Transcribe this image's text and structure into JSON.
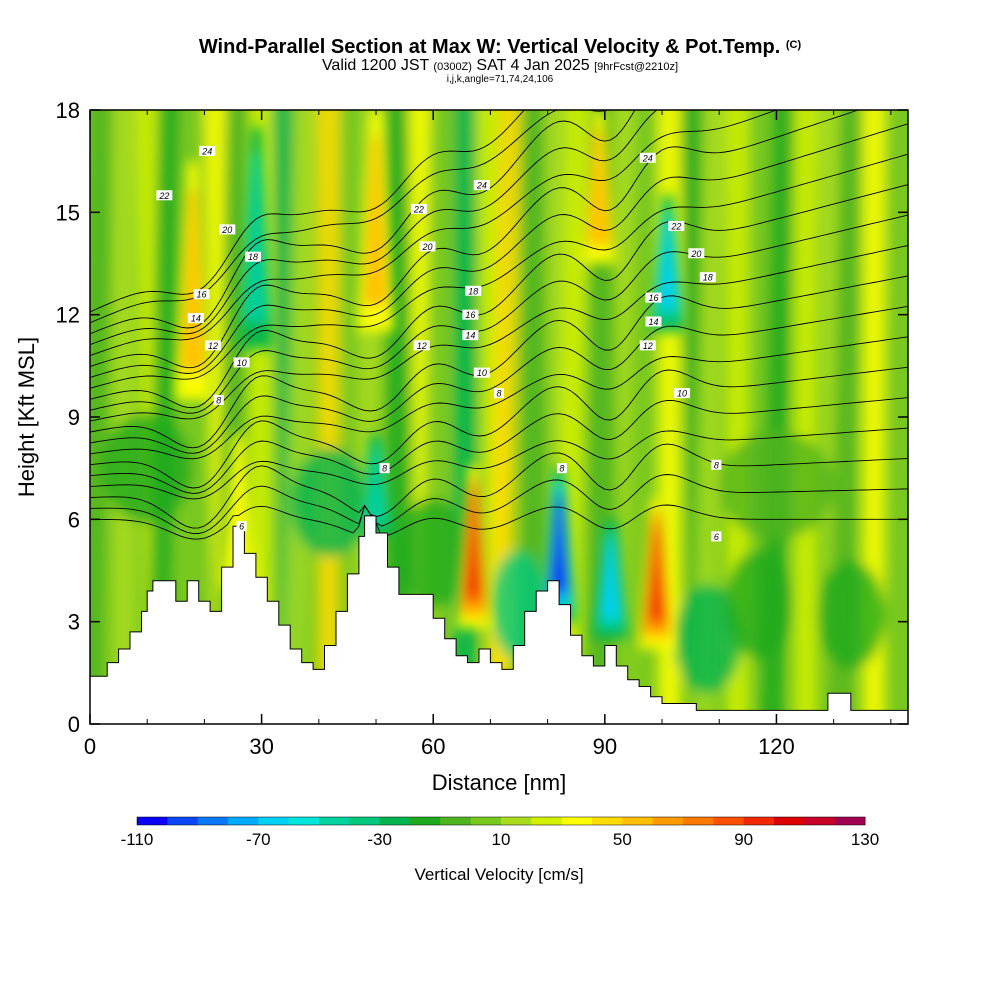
{
  "header": {
    "title": "Wind-Parallel Section at Max W: Vertical Velocity & Pot.Temp.",
    "title_mark": "(C)",
    "valid_prefix": "Valid 1200 JST",
    "valid_utc": "(0300Z)",
    "valid_date": "SAT 4 Jan 2025",
    "forecast": "[9hrFcst@2210z]",
    "indices": "i,j,k,angle=71,74,24,106"
  },
  "chart_data": {
    "type": "heatmap",
    "xlabel": "Distance [nm]",
    "ylabel": "Height [Kft MSL]",
    "xlim": [
      0,
      143
    ],
    "ylim": [
      0,
      18
    ],
    "x_ticks": [
      "0",
      "30",
      "60",
      "90",
      "120"
    ],
    "y_ticks": [
      "0",
      "3",
      "6",
      "9",
      "12",
      "15",
      "18"
    ],
    "colorbar": {
      "label": "Vertical Velocity [cm/s]",
      "range": [
        -110,
        130
      ],
      "step": 10,
      "tick_labels": [
        "-110",
        "-70",
        "-30",
        "10",
        "50",
        "90",
        "130"
      ],
      "colors": [
        "#0a00f5",
        "#0a46f5",
        "#0a78f5",
        "#00aaff",
        "#00d2f5",
        "#00e6dc",
        "#00d2a0",
        "#00c87d",
        "#00b450",
        "#1eaa1e",
        "#50b41e",
        "#78c81e",
        "#aadc1e",
        "#d2f000",
        "#ffff00",
        "#ffdc00",
        "#ffbe00",
        "#ff9b00",
        "#ff7800",
        "#ff5000",
        "#f02800",
        "#dc0000",
        "#c80028",
        "#a00050",
        "#780078"
      ]
    },
    "terrain_heights_kft": [
      [
        0,
        1.4
      ],
      [
        3,
        1.8
      ],
      [
        5,
        2.2
      ],
      [
        7,
        2.7
      ],
      [
        9,
        3.3
      ],
      [
        10,
        3.9
      ],
      [
        11,
        4.2
      ],
      [
        13,
        4.2
      ],
      [
        15,
        3.6
      ],
      [
        17,
        4.2
      ],
      [
        19,
        3.6
      ],
      [
        21,
        3.3
      ],
      [
        23,
        4.6
      ],
      [
        25,
        5.8
      ],
      [
        27,
        5.0
      ],
      [
        29,
        4.3
      ],
      [
        31,
        3.6
      ],
      [
        33,
        2.9
      ],
      [
        35,
        2.2
      ],
      [
        37,
        1.8
      ],
      [
        39,
        1.6
      ],
      [
        41,
        2.3
      ],
      [
        43,
        3.3
      ],
      [
        45,
        4.4
      ],
      [
        47,
        5.5
      ],
      [
        48,
        6.1
      ],
      [
        50,
        5.6
      ],
      [
        52,
        4.6
      ],
      [
        54,
        3.8
      ],
      [
        58,
        3.8
      ],
      [
        60,
        3.1
      ],
      [
        62,
        2.5
      ],
      [
        64,
        2.0
      ],
      [
        66,
        1.8
      ],
      [
        68,
        2.2
      ],
      [
        70,
        1.8
      ],
      [
        72,
        1.6
      ],
      [
        74,
        2.3
      ],
      [
        76,
        3.3
      ],
      [
        78,
        3.9
      ],
      [
        80,
        4.2
      ],
      [
        82,
        3.5
      ],
      [
        84,
        2.6
      ],
      [
        86,
        2.0
      ],
      [
        88,
        1.7
      ],
      [
        90,
        2.3
      ],
      [
        92,
        1.7
      ],
      [
        94,
        1.3
      ],
      [
        96,
        1.1
      ],
      [
        98,
        0.8
      ],
      [
        100,
        0.6
      ],
      [
        102,
        0.6
      ],
      [
        106,
        0.4
      ],
      [
        110,
        0.4
      ],
      [
        128,
        0.4
      ],
      [
        129,
        0.9
      ],
      [
        132,
        0.9
      ],
      [
        133,
        0.4
      ],
      [
        143,
        0.4
      ]
    ],
    "updraft_cores": [
      {
        "x": 18,
        "y_bottom": 9.5,
        "y_top": 16.5,
        "w": 60
      },
      {
        "x": 26,
        "y_bottom": 4.0,
        "y_top": 8.5,
        "w": 40
      },
      {
        "x": 50,
        "y_bottom": 11.5,
        "y_top": 18.0,
        "w": 60
      },
      {
        "x": 67,
        "y_bottom": 2.8,
        "y_top": 7.6,
        "w": 90
      },
      {
        "x": 89,
        "y_bottom": 13.5,
        "y_top": 18.0,
        "w": 60
      },
      {
        "x": 99,
        "y_bottom": 2.2,
        "y_top": 6.6,
        "w": 90
      }
    ],
    "downdraft_cores": [
      {
        "x": 29,
        "y_bottom": 11.0,
        "y_top": 17.5,
        "w": -60
      },
      {
        "x": 50,
        "y_bottom": 5.5,
        "y_top": 8.5,
        "w": -50
      },
      {
        "x": 82,
        "y_bottom": 3.0,
        "y_top": 7.5,
        "w": -110
      },
      {
        "x": 91,
        "y_bottom": 2.5,
        "y_top": 6.0,
        "w": -70
      },
      {
        "x": 101,
        "y_bottom": 11.5,
        "y_top": 15.5,
        "w": -70
      }
    ],
    "pot_temp_contours_C": [
      6,
      7,
      8,
      9,
      10,
      11,
      12,
      13,
      14,
      15,
      16,
      17,
      18,
      19,
      20,
      21,
      22,
      23,
      24,
      25
    ],
    "contour_labels": [
      {
        "text": "24",
        "x": 20.5,
        "y": 16.8
      },
      {
        "text": "22",
        "x": 13,
        "y": 15.5
      },
      {
        "text": "20",
        "x": 24,
        "y": 14.5
      },
      {
        "text": "18",
        "x": 28.5,
        "y": 13.7
      },
      {
        "text": "16",
        "x": 19.5,
        "y": 12.6
      },
      {
        "text": "14",
        "x": 18.5,
        "y": 11.9
      },
      {
        "text": "12",
        "x": 21.5,
        "y": 11.1
      },
      {
        "text": "10",
        "x": 26.5,
        "y": 10.6
      },
      {
        "text": "8",
        "x": 22.5,
        "y": 9.5
      },
      {
        "text": "6",
        "x": 26.5,
        "y": 5.8
      },
      {
        "text": "24",
        "x": 68.5,
        "y": 15.8
      },
      {
        "text": "22",
        "x": 57.5,
        "y": 15.1
      },
      {
        "text": "20",
        "x": 59,
        "y": 14.0
      },
      {
        "text": "18",
        "x": 67,
        "y": 12.7
      },
      {
        "text": "16",
        "x": 66.5,
        "y": 12.0
      },
      {
        "text": "14",
        "x": 66.5,
        "y": 11.4
      },
      {
        "text": "12",
        "x": 58,
        "y": 11.1
      },
      {
        "text": "10",
        "x": 68.5,
        "y": 10.3
      },
      {
        "text": "8",
        "x": 71.5,
        "y": 9.7
      },
      {
        "text": "8",
        "x": 51.5,
        "y": 7.5
      },
      {
        "text": "24",
        "x": 97.5,
        "y": 16.6
      },
      {
        "text": "22",
        "x": 102.5,
        "y": 14.6
      },
      {
        "text": "20",
        "x": 106,
        "y": 13.8
      },
      {
        "text": "18",
        "x": 108,
        "y": 13.1
      },
      {
        "text": "16",
        "x": 98.5,
        "y": 12.5
      },
      {
        "text": "14",
        "x": 98.5,
        "y": 11.8
      },
      {
        "text": "12",
        "x": 97.5,
        "y": 11.1
      },
      {
        "text": "10",
        "x": 103.5,
        "y": 9.7
      },
      {
        "text": "8",
        "x": 82.5,
        "y": 7.5
      },
      {
        "text": "8",
        "x": 109.5,
        "y": 7.6
      },
      {
        "text": "6",
        "x": 109.5,
        "y": 5.5
      }
    ]
  }
}
